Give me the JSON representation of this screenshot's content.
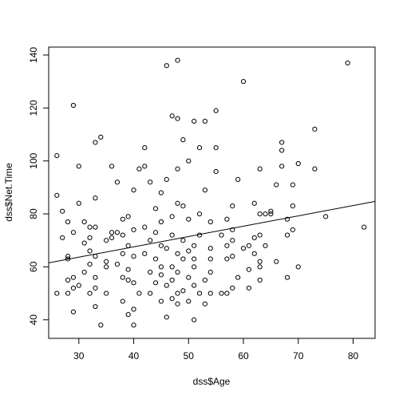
{
  "chart_data": {
    "type": "scatter",
    "title": "",
    "xlabel": "dss$Age",
    "ylabel": "dss$Net.Time",
    "xlim": [
      24.5,
      84
    ],
    "ylim": [
      33,
      143
    ],
    "xticks": [
      30,
      40,
      50,
      60,
      70,
      80
    ],
    "yticks": [
      40,
      60,
      80,
      100,
      120,
      140
    ],
    "grid": false,
    "legend": "none",
    "point_color": "#000000",
    "line_color": "#000000",
    "regression_line": {
      "intercept": 51.96,
      "slope": 0.39
    },
    "points": [
      [
        26,
        87
      ],
      [
        26,
        102
      ],
      [
        26,
        50
      ],
      [
        27,
        71
      ],
      [
        27,
        81
      ],
      [
        28,
        50
      ],
      [
        28,
        55
      ],
      [
        28,
        63
      ],
      [
        28,
        64
      ],
      [
        28,
        77
      ],
      [
        29,
        43
      ],
      [
        29,
        52
      ],
      [
        29,
        56
      ],
      [
        29,
        73
      ],
      [
        29,
        121
      ],
      [
        30,
        53
      ],
      [
        30,
        84
      ],
      [
        30,
        98
      ],
      [
        31,
        58
      ],
      [
        31,
        69
      ],
      [
        31,
        77
      ],
      [
        32,
        66
      ],
      [
        32,
        71
      ],
      [
        32,
        75
      ],
      [
        32,
        50
      ],
      [
        32,
        61
      ],
      [
        33,
        45
      ],
      [
        33,
        52
      ],
      [
        33,
        56
      ],
      [
        33,
        64
      ],
      [
        33,
        75
      ],
      [
        33,
        86
      ],
      [
        33,
        107
      ],
      [
        34,
        38
      ],
      [
        34,
        109
      ],
      [
        35,
        50
      ],
      [
        35,
        60
      ],
      [
        35,
        62
      ],
      [
        35,
        70
      ],
      [
        36,
        71
      ],
      [
        36,
        73
      ],
      [
        36,
        98
      ],
      [
        37,
        61
      ],
      [
        37,
        73
      ],
      [
        37,
        92
      ],
      [
        38,
        47
      ],
      [
        38,
        56
      ],
      [
        38,
        65
      ],
      [
        38,
        72
      ],
      [
        38,
        78
      ],
      [
        39,
        42
      ],
      [
        39,
        55
      ],
      [
        39,
        59
      ],
      [
        39,
        68
      ],
      [
        39,
        79
      ],
      [
        40,
        38
      ],
      [
        40,
        44
      ],
      [
        40,
        54
      ],
      [
        40,
        64
      ],
      [
        40,
        74
      ],
      [
        40,
        89
      ],
      [
        41,
        50
      ],
      [
        41,
        97
      ],
      [
        42,
        65
      ],
      [
        42,
        75
      ],
      [
        42,
        105
      ],
      [
        42,
        98
      ],
      [
        43,
        50
      ],
      [
        43,
        58
      ],
      [
        43,
        70
      ],
      [
        43,
        92
      ],
      [
        44,
        54
      ],
      [
        44,
        63
      ],
      [
        44,
        73
      ],
      [
        44,
        82
      ],
      [
        45,
        47
      ],
      [
        45,
        57
      ],
      [
        45,
        60
      ],
      [
        45,
        68
      ],
      [
        45,
        77
      ],
      [
        45,
        88
      ],
      [
        46,
        41
      ],
      [
        46,
        53
      ],
      [
        46,
        67
      ],
      [
        46,
        93
      ],
      [
        46,
        136
      ],
      [
        47,
        48
      ],
      [
        47,
        55
      ],
      [
        47,
        60
      ],
      [
        47,
        72
      ],
      [
        47,
        79
      ],
      [
        47,
        117
      ],
      [
        48,
        46
      ],
      [
        48,
        50
      ],
      [
        48,
        58
      ],
      [
        48,
        65
      ],
      [
        48,
        84
      ],
      [
        48,
        97
      ],
      [
        48,
        116
      ],
      [
        48,
        138
      ],
      [
        49,
        51
      ],
      [
        49,
        63
      ],
      [
        49,
        70
      ],
      [
        49,
        83
      ],
      [
        49,
        108
      ],
      [
        50,
        47
      ],
      [
        50,
        56
      ],
      [
        50,
        66
      ],
      [
        50,
        78
      ],
      [
        50,
        100
      ],
      [
        51,
        40
      ],
      [
        51,
        53
      ],
      [
        51,
        60
      ],
      [
        51,
        63
      ],
      [
        51,
        68
      ],
      [
        51,
        115
      ],
      [
        52,
        50
      ],
      [
        52,
        72
      ],
      [
        52,
        80
      ],
      [
        52,
        105
      ],
      [
        53,
        46
      ],
      [
        53,
        55
      ],
      [
        53,
        89
      ],
      [
        53,
        115
      ],
      [
        54,
        50
      ],
      [
        54,
        58
      ],
      [
        54,
        63
      ],
      [
        54,
        67
      ],
      [
        54,
        77
      ],
      [
        55,
        96
      ],
      [
        55,
        105
      ],
      [
        55,
        119
      ],
      [
        56,
        50
      ],
      [
        56,
        72
      ],
      [
        57,
        50
      ],
      [
        57,
        63
      ],
      [
        57,
        68
      ],
      [
        57,
        78
      ],
      [
        58,
        52
      ],
      [
        58,
        64
      ],
      [
        58,
        70
      ],
      [
        58,
        74
      ],
      [
        58,
        83
      ],
      [
        59,
        56
      ],
      [
        59,
        93
      ],
      [
        60,
        67
      ],
      [
        60,
        130
      ],
      [
        61,
        52
      ],
      [
        61,
        59
      ],
      [
        61,
        68
      ],
      [
        62,
        65
      ],
      [
        62,
        71
      ],
      [
        62,
        84
      ],
      [
        63,
        55
      ],
      [
        63,
        60
      ],
      [
        63,
        62
      ],
      [
        63,
        72
      ],
      [
        63,
        80
      ],
      [
        63,
        97
      ],
      [
        64,
        68
      ],
      [
        64,
        80
      ],
      [
        65,
        80
      ],
      [
        65,
        81
      ],
      [
        66,
        62
      ],
      [
        66,
        91
      ],
      [
        67,
        98
      ],
      [
        67,
        104
      ],
      [
        67,
        107
      ],
      [
        68,
        56
      ],
      [
        68,
        72
      ],
      [
        68,
        78
      ],
      [
        69,
        74
      ],
      [
        69,
        83
      ],
      [
        69,
        91
      ],
      [
        70,
        60
      ],
      [
        70,
        99
      ],
      [
        73,
        97
      ],
      [
        73,
        112
      ],
      [
        75,
        79
      ],
      [
        79,
        137
      ],
      [
        82,
        75
      ]
    ]
  }
}
